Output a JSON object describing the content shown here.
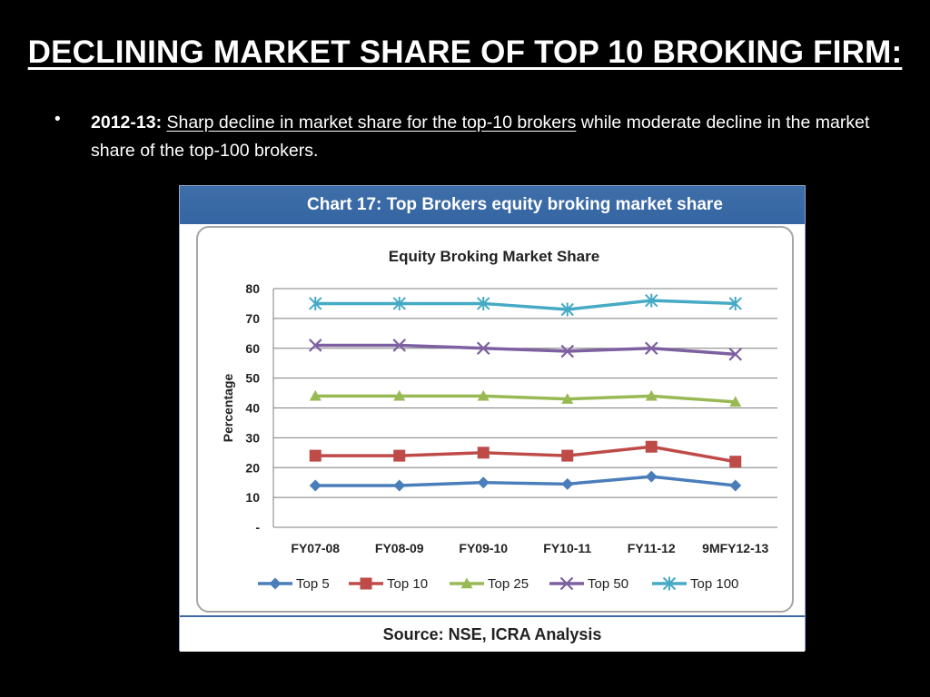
{
  "slide": {
    "title": "DECLINING MARKET SHARE OF TOP 10 BROKING FIRM:",
    "bullet": {
      "label": "2012-13:",
      "underlined": "Sharp decline in market share for the top-10 brokers",
      "rest": " while moderate decline in the market share of the top-100 brokers."
    }
  },
  "chart_header": "Chart 17: Top Brokers equity broking market share",
  "source": "Source: NSE, ICRA Analysis",
  "chart_data": {
    "type": "line",
    "title": "Equity Broking Market Share",
    "xlabel": "",
    "ylabel": "Percentage",
    "categories": [
      "FY07-08",
      "FY08-09",
      "FY09-10",
      "FY10-11",
      "FY11-12",
      "9MFY12-13"
    ],
    "ylim": [
      0,
      80
    ],
    "yticks": [
      "-",
      "10",
      "20",
      "30",
      "40",
      "50",
      "60",
      "70",
      "80"
    ],
    "grid": true,
    "legend": "bottom",
    "series": [
      {
        "name": "Top 5",
        "values": [
          14,
          14,
          15,
          14.5,
          17,
          14
        ],
        "color": "#4a7ebb",
        "marker": "diamond"
      },
      {
        "name": "Top 10",
        "values": [
          24,
          24,
          25,
          24,
          27,
          22
        ],
        "color": "#be4b48",
        "marker": "square"
      },
      {
        "name": "Top 25",
        "values": [
          44,
          44,
          44,
          43,
          44,
          42
        ],
        "color": "#98b954",
        "marker": "triangle"
      },
      {
        "name": "Top 50",
        "values": [
          61,
          61,
          60,
          59,
          60,
          58
        ],
        "color": "#7d60a0",
        "marker": "x"
      },
      {
        "name": "Top 100",
        "values": [
          75,
          75,
          75,
          73,
          76,
          75
        ],
        "color": "#46aac5",
        "marker": "star"
      }
    ]
  }
}
